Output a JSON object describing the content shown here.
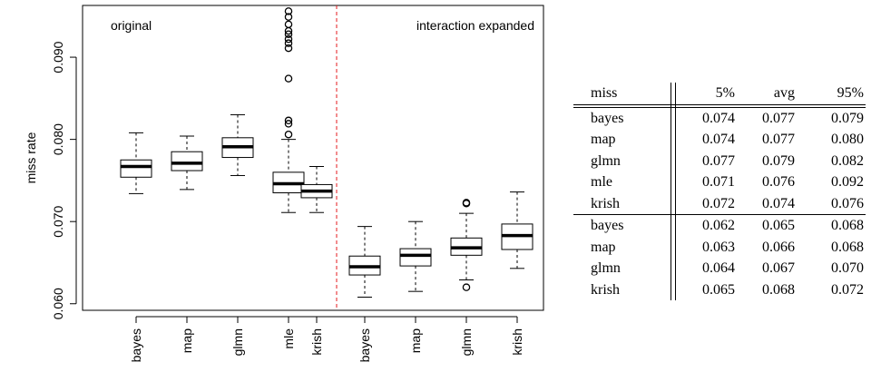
{
  "chart_data": {
    "type": "box",
    "ylabel": "miss rate",
    "ylim": [
      0.0592,
      0.0963
    ],
    "yticks": [
      0.06,
      0.07,
      0.08,
      0.09
    ],
    "ytick_labels": [
      "0.060",
      "0.070",
      "0.080",
      "0.090"
    ],
    "panel_labels": [
      "original",
      "interaction expanded"
    ],
    "categories": [
      "bayes",
      "map",
      "glmn",
      "mle",
      "krish",
      "bayes",
      "map",
      "glmn",
      "krish"
    ],
    "boxes": [
      {
        "label": "bayes",
        "group": "original",
        "whisker_low": 0.0734,
        "q1": 0.0754,
        "median": 0.0767,
        "q3": 0.0775,
        "whisker_high": 0.0808,
        "outliers": []
      },
      {
        "label": "map",
        "group": "original",
        "whisker_low": 0.0739,
        "q1": 0.0762,
        "median": 0.0771,
        "q3": 0.0785,
        "whisker_high": 0.0804,
        "outliers": []
      },
      {
        "label": "glmn",
        "group": "original",
        "whisker_low": 0.0756,
        "q1": 0.0778,
        "median": 0.0791,
        "q3": 0.0802,
        "whisker_high": 0.083,
        "outliers": []
      },
      {
        "label": "mle",
        "group": "original",
        "whisker_low": 0.0711,
        "q1": 0.0735,
        "median": 0.0746,
        "q3": 0.076,
        "whisker_high": 0.08,
        "outliers": [
          0.0806,
          0.0819,
          0.0823,
          0.0874,
          0.0911,
          0.0917,
          0.0922,
          0.0928,
          0.0932,
          0.094,
          0.0949,
          0.0956
        ]
      },
      {
        "label": "krish",
        "group": "original",
        "whisker_low": 0.0711,
        "q1": 0.0729,
        "median": 0.0737,
        "q3": 0.0745,
        "whisker_high": 0.0767,
        "outliers": []
      },
      {
        "label": "bayes",
        "group": "interaction expanded",
        "whisker_low": 0.0608,
        "q1": 0.0635,
        "median": 0.0645,
        "q3": 0.0658,
        "whisker_high": 0.0694,
        "outliers": []
      },
      {
        "label": "map",
        "group": "interaction expanded",
        "whisker_low": 0.0615,
        "q1": 0.0646,
        "median": 0.0659,
        "q3": 0.0667,
        "whisker_high": 0.07,
        "outliers": []
      },
      {
        "label": "glmn",
        "group": "interaction expanded",
        "whisker_low": 0.0629,
        "q1": 0.0659,
        "median": 0.0668,
        "q3": 0.068,
        "whisker_high": 0.071,
        "outliers": [
          0.062,
          0.0722,
          0.0723
        ]
      },
      {
        "label": "krish",
        "group": "interaction expanded",
        "whisker_low": 0.0643,
        "q1": 0.0666,
        "median": 0.0683,
        "q3": 0.0697,
        "whisker_high": 0.0736,
        "outliers": []
      }
    ],
    "colors": {
      "divider": "#e41a1c",
      "box": "#000000"
    }
  },
  "table": {
    "headers": [
      "miss",
      "5%",
      "avg",
      "95%"
    ],
    "groups": [
      [
        [
          "bayes",
          "0.074",
          "0.077",
          "0.079"
        ],
        [
          "map",
          "0.074",
          "0.077",
          "0.080"
        ],
        [
          "glmn",
          "0.077",
          "0.079",
          "0.082"
        ],
        [
          "mle",
          "0.071",
          "0.076",
          "0.092"
        ],
        [
          "krish",
          "0.072",
          "0.074",
          "0.076"
        ]
      ],
      [
        [
          "bayes",
          "0.062",
          "0.065",
          "0.068"
        ],
        [
          "map",
          "0.063",
          "0.066",
          "0.068"
        ],
        [
          "glmn",
          "0.064",
          "0.067",
          "0.070"
        ],
        [
          "krish",
          "0.065",
          "0.068",
          "0.072"
        ]
      ]
    ]
  }
}
